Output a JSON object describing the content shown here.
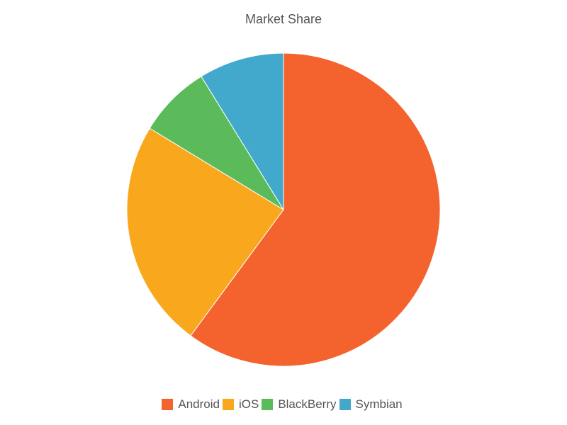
{
  "chart_data": {
    "type": "pie",
    "title": "Market Share",
    "categories": [
      "Android",
      "iOS",
      "BlackBerry",
      "Symbian"
    ],
    "values": [
      60.1,
      23.6,
      7.5,
      8.8
    ],
    "colors": [
      "#F4632E",
      "#F9A81E",
      "#5BBA5A",
      "#43A9CC"
    ],
    "legend_position": "bottom"
  }
}
